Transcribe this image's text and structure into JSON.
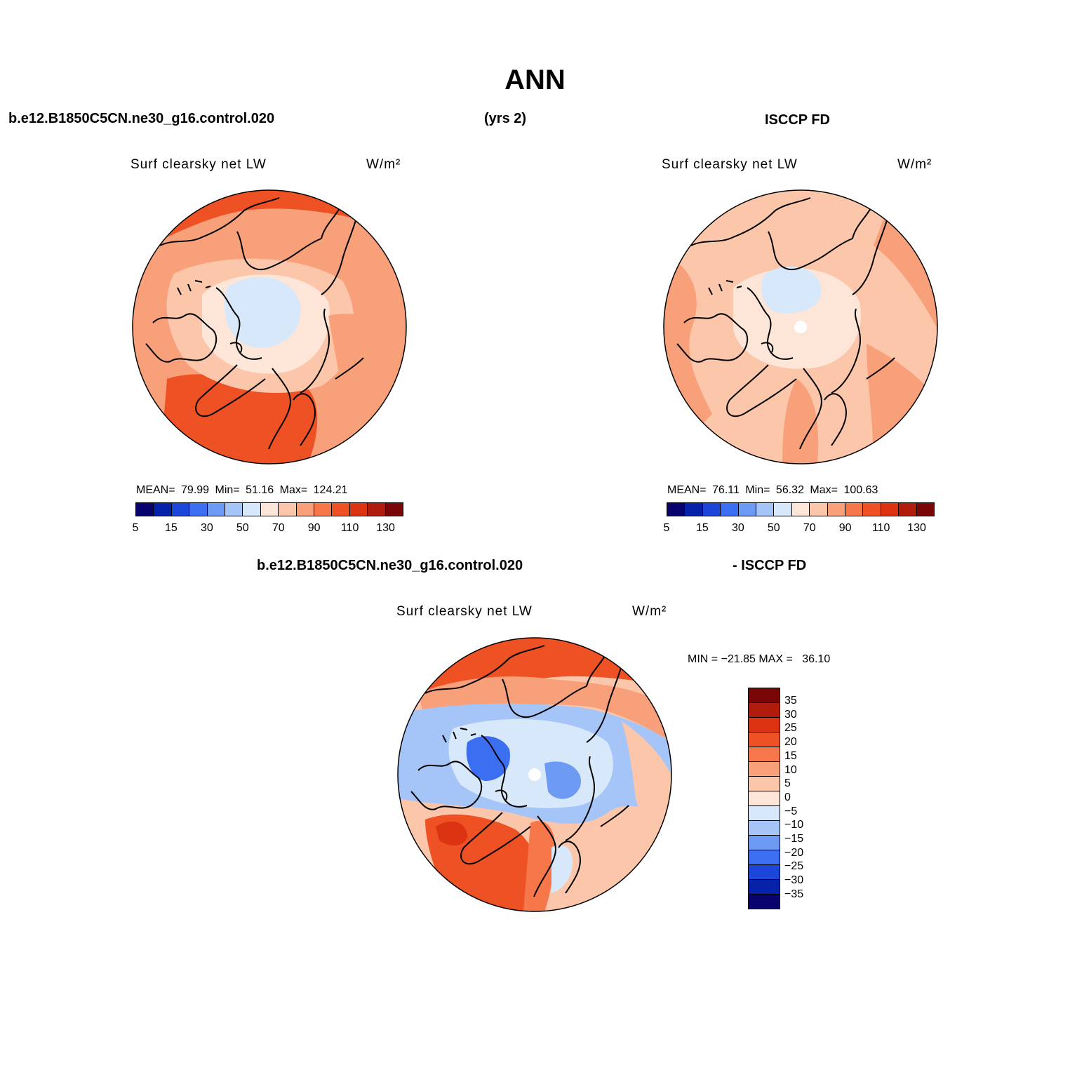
{
  "title": "ANN",
  "header": {
    "case_name": "b.e12.B1850C5CN.ne30_g16.control.020",
    "years": "(yrs 2)",
    "obs_name": "ISCCP FD"
  },
  "diff_header": {
    "case_name": "b.e12.B1850C5CN.ne30_g16.control.020",
    "obs_name": "- ISCCP FD"
  },
  "colors": {
    "levels": [
      "#08036e",
      "#0521a8",
      "#1c45d9",
      "#3b6ef0",
      "#6d9af3",
      "#a5c4f7",
      "#d7e8fb",
      "#fde6d8",
      "#fbc6aa",
      "#f8a07a",
      "#f6784a",
      "#ee5123",
      "#dc3412",
      "#b01c0b",
      "#790707"
    ],
    "coast": "#000000"
  },
  "panels": [
    {
      "id": "model",
      "variable": "Surf clearsky net LW",
      "units": "W/m²",
      "mean_label": "MEAN=",
      "mean": "79.99",
      "min_label": "Min=",
      "min": "51.16",
      "max_label": "Max=",
      "max": "124.21",
      "ticks": [
        "5",
        "15",
        "30",
        "50",
        "70",
        "90",
        "110",
        "130"
      ]
    },
    {
      "id": "obs",
      "variable": "Surf clearsky net LW",
      "units": "W/m²",
      "mean_label": "MEAN=",
      "mean": "76.11",
      "min_label": "Min=",
      "min": "56.32",
      "max_label": "Max=",
      "max": "100.63",
      "ticks": [
        "5",
        "15",
        "30",
        "50",
        "70",
        "90",
        "110",
        "130"
      ]
    }
  ],
  "difference": {
    "variable": "Surf clearsky net LW",
    "units": "W/m²",
    "minmax_label": "MIN = −21.85 MAX =   36.10",
    "ticks": [
      "35",
      "30",
      "25",
      "20",
      "15",
      "10",
      "5",
      "0",
      "−5",
      "−10",
      "−15",
      "−20",
      "−25",
      "−30",
      "−35"
    ]
  }
}
